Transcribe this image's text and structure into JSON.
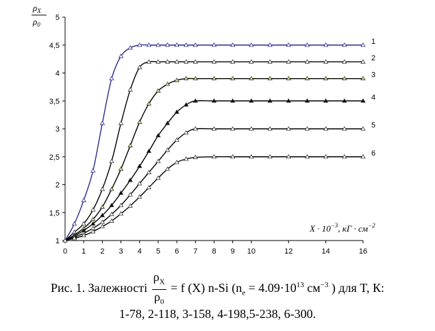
{
  "chart_data": {
    "type": "line",
    "xlim": [
      0,
      16
    ],
    "ylim": [
      1,
      5
    ],
    "x_ticks": [
      "0",
      "1",
      "2",
      "3",
      "4",
      "5",
      "6",
      "7",
      "8",
      "9",
      "10",
      "12",
      "14",
      "16"
    ],
    "y_ticks": [
      "1",
      "1,5",
      "2",
      "2,5",
      "3",
      "3,5",
      "4",
      "4,5",
      "5"
    ],
    "ylabel": {
      "top": "ρ",
      "top_sub": "X",
      "bottom": "ρ",
      "bottom_sub": "0"
    },
    "xlabel": {
      "var": "X",
      "mult": " · 10",
      "exp": "−3",
      "unit": ", кГ · см",
      "unit_exp": "−2"
    },
    "grid": false,
    "series": [
      {
        "name": "1",
        "color": "#2a2a8c",
        "marker_fill": "#ffffff",
        "x": [
          0,
          0.5,
          1,
          1.5,
          2,
          2.5,
          3,
          3.5,
          4,
          4.5,
          5,
          5.5,
          6,
          6.5,
          7,
          8,
          9,
          10,
          11,
          12,
          13,
          14,
          15,
          16
        ],
        "y": [
          1,
          1.3,
          1.72,
          2.25,
          3.1,
          3.9,
          4.3,
          4.45,
          4.5,
          4.5,
          4.5,
          4.5,
          4.5,
          4.5,
          4.5,
          4.5,
          4.5,
          4.5,
          4.5,
          4.5,
          4.5,
          4.5,
          4.5,
          4.5
        ]
      },
      {
        "name": "2",
        "color": "#000000",
        "marker_fill": "#ffffff",
        "x": [
          0,
          0.5,
          1,
          1.5,
          2,
          2.5,
          3,
          3.5,
          4,
          4.5,
          5,
          5.5,
          6,
          6.5,
          7,
          8,
          9,
          10,
          11,
          12,
          13,
          14,
          15,
          16
        ],
        "y": [
          1,
          1.15,
          1.3,
          1.55,
          1.92,
          2.42,
          3.1,
          3.7,
          4.1,
          4.2,
          4.2,
          4.2,
          4.2,
          4.2,
          4.2,
          4.2,
          4.2,
          4.2,
          4.2,
          4.2,
          4.2,
          4.2,
          4.2,
          4.2
        ]
      },
      {
        "name": "3",
        "color": "#000000",
        "marker_fill": "#e6e28a",
        "x": [
          0,
          0.5,
          1,
          1.5,
          2,
          2.5,
          3,
          3.5,
          4,
          4.5,
          5,
          5.5,
          6,
          6.5,
          7,
          8,
          9,
          10,
          11,
          12,
          13,
          14,
          15,
          16
        ],
        "y": [
          1,
          1.1,
          1.22,
          1.38,
          1.6,
          1.92,
          2.28,
          2.7,
          3.12,
          3.45,
          3.68,
          3.8,
          3.87,
          3.9,
          3.9,
          3.9,
          3.9,
          3.9,
          3.9,
          3.9,
          3.9,
          3.9,
          3.9,
          3.9
        ]
      },
      {
        "name": "4",
        "color": "#000000",
        "marker_fill": "#000000",
        "x": [
          0,
          0.5,
          1,
          1.5,
          2,
          2.5,
          3,
          3.5,
          4,
          4.5,
          5,
          5.5,
          6,
          6.5,
          7,
          8,
          9,
          10,
          11,
          12,
          13,
          14,
          15,
          16
        ],
        "y": [
          1,
          1.08,
          1.18,
          1.3,
          1.45,
          1.63,
          1.85,
          2.08,
          2.33,
          2.6,
          2.88,
          3.1,
          3.3,
          3.43,
          3.5,
          3.5,
          3.5,
          3.5,
          3.5,
          3.5,
          3.5,
          3.5,
          3.5,
          3.5
        ]
      },
      {
        "name": "5",
        "color": "#000000",
        "marker_fill": "#ffffff",
        "x": [
          0,
          0.5,
          1,
          1.5,
          2,
          2.5,
          3,
          3.5,
          4,
          4.5,
          5,
          5.5,
          6,
          6.5,
          7,
          8,
          9,
          10,
          11,
          12,
          13,
          14,
          15,
          16
        ],
        "y": [
          1,
          1.06,
          1.13,
          1.22,
          1.33,
          1.47,
          1.63,
          1.82,
          2.02,
          2.22,
          2.42,
          2.62,
          2.8,
          2.93,
          3.0,
          3.0,
          3.0,
          3.0,
          3.0,
          3.0,
          3.0,
          3.0,
          3.0,
          3.0
        ]
      },
      {
        "name": "6",
        "color": "#000000",
        "marker_fill": "#ffffff",
        "x": [
          0,
          0.5,
          1,
          1.5,
          2,
          2.5,
          3,
          3.5,
          4,
          4.5,
          5,
          5.5,
          6,
          6.5,
          7,
          8,
          9,
          10,
          11,
          12,
          13,
          14,
          15,
          16
        ],
        "y": [
          1,
          1.04,
          1.09,
          1.16,
          1.25,
          1.35,
          1.48,
          1.62,
          1.78,
          1.95,
          2.12,
          2.28,
          2.4,
          2.46,
          2.49,
          2.5,
          2.5,
          2.5,
          2.5,
          2.5,
          2.5,
          2.5,
          2.5,
          2.5
        ]
      }
    ]
  },
  "caption": {
    "prefix": "Рис. 1. Залежності",
    "frac_num": "ρ",
    "frac_num_sub": "X",
    "frac_den": "ρ",
    "frac_den_sub": "0",
    "eq": "= f (X)  n-Si (",
    "ne": "n",
    "ne_sub": "e",
    "ne_eq": " = 4.09·10",
    "ne_exp": "13",
    "unit": " см",
    "unit_exp": "−3",
    "suffix": " ) для T, К:",
    "line2": "1-78, 2-118, 3-158, 4-198,5-238, 6-300."
  }
}
